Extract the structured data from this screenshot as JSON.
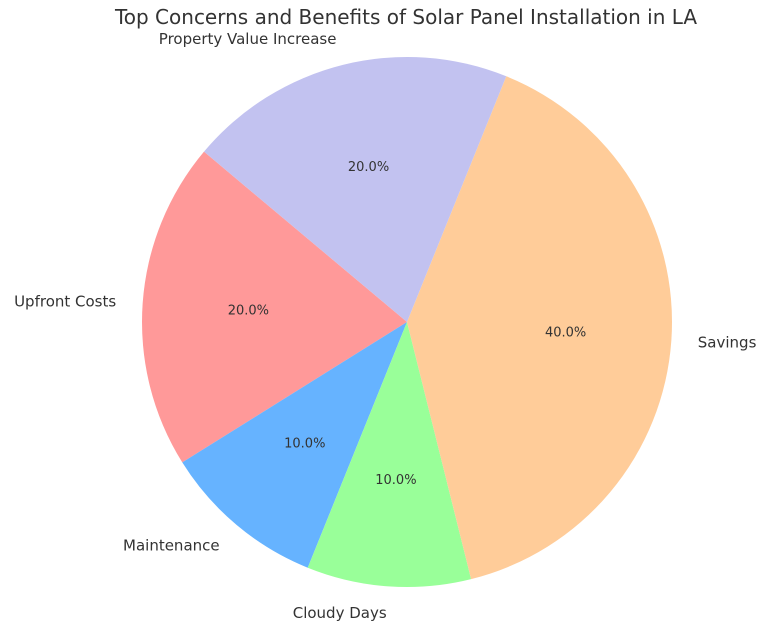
{
  "chart_data": {
    "type": "pie",
    "title": "Top Concerns and Benefits of Solar Panel Installation in LA",
    "start_angle_deg": 140,
    "direction": "counterclockwise",
    "slices": [
      {
        "label": "Upfront Costs",
        "value": 20.0,
        "pct_label": "20.0%",
        "color": "#ff9999"
      },
      {
        "label": "Maintenance",
        "value": 10.0,
        "pct_label": "10.0%",
        "color": "#66b3ff"
      },
      {
        "label": "Cloudy Days",
        "value": 10.0,
        "pct_label": "10.0%",
        "color": "#99ff99"
      },
      {
        "label": "Savings",
        "value": 40.0,
        "pct_label": "40.0%",
        "color": "#ffcc99"
      },
      {
        "label": "Property Value Increase",
        "value": 20.0,
        "pct_label": "20.0%",
        "color": "#c2c2f0"
      }
    ]
  }
}
